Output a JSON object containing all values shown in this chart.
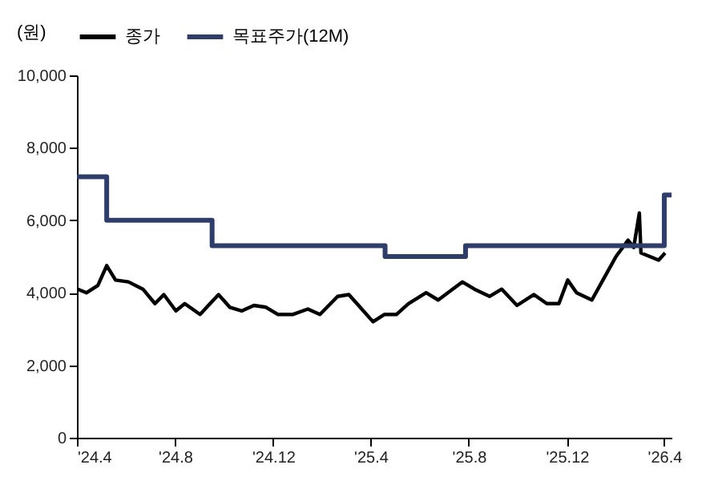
{
  "chart_data": {
    "type": "line",
    "ylabel": "(원)",
    "legend": "top",
    "grid": false,
    "ylim": [
      0,
      10000
    ],
    "yticks": [
      {
        "value": 0,
        "label": "0"
      },
      {
        "value": 2000,
        "label": "2,000"
      },
      {
        "value": 4000,
        "label": "4,000"
      },
      {
        "value": 6000,
        "label": "6,000"
      },
      {
        "value": 8000,
        "label": "8,000"
      },
      {
        "value": 10000,
        "label": "10,000"
      }
    ],
    "xlim": [
      "2024-04-01",
      "2026-04-10"
    ],
    "xticks": [
      {
        "value": "2024-04-01",
        "label": "'24.4"
      },
      {
        "value": "2024-08-01",
        "label": "'24.8"
      },
      {
        "value": "2024-12-01",
        "label": "'24.12"
      },
      {
        "value": "2025-04-01",
        "label": "'25.4"
      },
      {
        "value": "2025-08-01",
        "label": "'25.8"
      },
      {
        "value": "2025-12-01",
        "label": "'25.12"
      },
      {
        "value": "2026-04-01",
        "label": "'26.4"
      }
    ],
    "series": [
      {
        "name": "종가",
        "color": "#000000",
        "x": [
          "2024-04-02",
          "2024-04-13",
          "2024-04-27",
          "2024-05-08",
          "2024-05-19",
          "2024-06-04",
          "2024-06-22",
          "2024-07-07",
          "2024-07-18",
          "2024-08-02",
          "2024-08-13",
          "2024-09-01",
          "2024-09-24",
          "2024-10-08",
          "2024-10-23",
          "2024-11-07",
          "2024-11-22",
          "2024-12-07",
          "2024-12-25",
          "2025-01-13",
          "2025-01-28",
          "2025-02-19",
          "2025-03-05",
          "2025-03-19",
          "2025-04-04",
          "2025-04-18",
          "2025-05-03",
          "2025-05-18",
          "2025-06-09",
          "2025-06-24",
          "2025-07-09",
          "2025-07-24",
          "2025-08-08",
          "2025-08-27",
          "2025-09-11",
          "2025-09-30",
          "2025-10-21",
          "2025-11-06",
          "2025-11-21",
          "2025-12-02",
          "2025-12-13",
          "2026-01-01",
          "2026-01-16",
          "2026-01-31",
          "2026-02-15",
          "2026-02-22",
          "2026-03-01",
          "2026-03-03",
          "2026-03-14",
          "2026-03-25",
          "2026-04-02"
        ],
        "values": [
          4100,
          4000,
          4200,
          4750,
          4350,
          4300,
          4100,
          3700,
          3950,
          3500,
          3700,
          3400,
          3950,
          3600,
          3500,
          3650,
          3600,
          3400,
          3400,
          3550,
          3400,
          3900,
          3950,
          3600,
          3200,
          3400,
          3400,
          3700,
          4000,
          3800,
          4050,
          4300,
          4100,
          3900,
          4100,
          3650,
          3950,
          3700,
          3700,
          4350,
          4000,
          3800,
          4400,
          5000,
          5450,
          5250,
          6200,
          5100,
          5000,
          4900,
          5100
        ]
      },
      {
        "name": "목표주가(12M)",
        "type": "step",
        "color": "#2f3d6b",
        "x": [
          "2024-04-01",
          "2024-05-08",
          "2024-09-16",
          "2025-04-19",
          "2025-07-28",
          "2026-04-01",
          "2026-04-10"
        ],
        "values": [
          7200,
          6000,
          5300,
          5000,
          5300,
          6700,
          6700
        ]
      }
    ]
  }
}
